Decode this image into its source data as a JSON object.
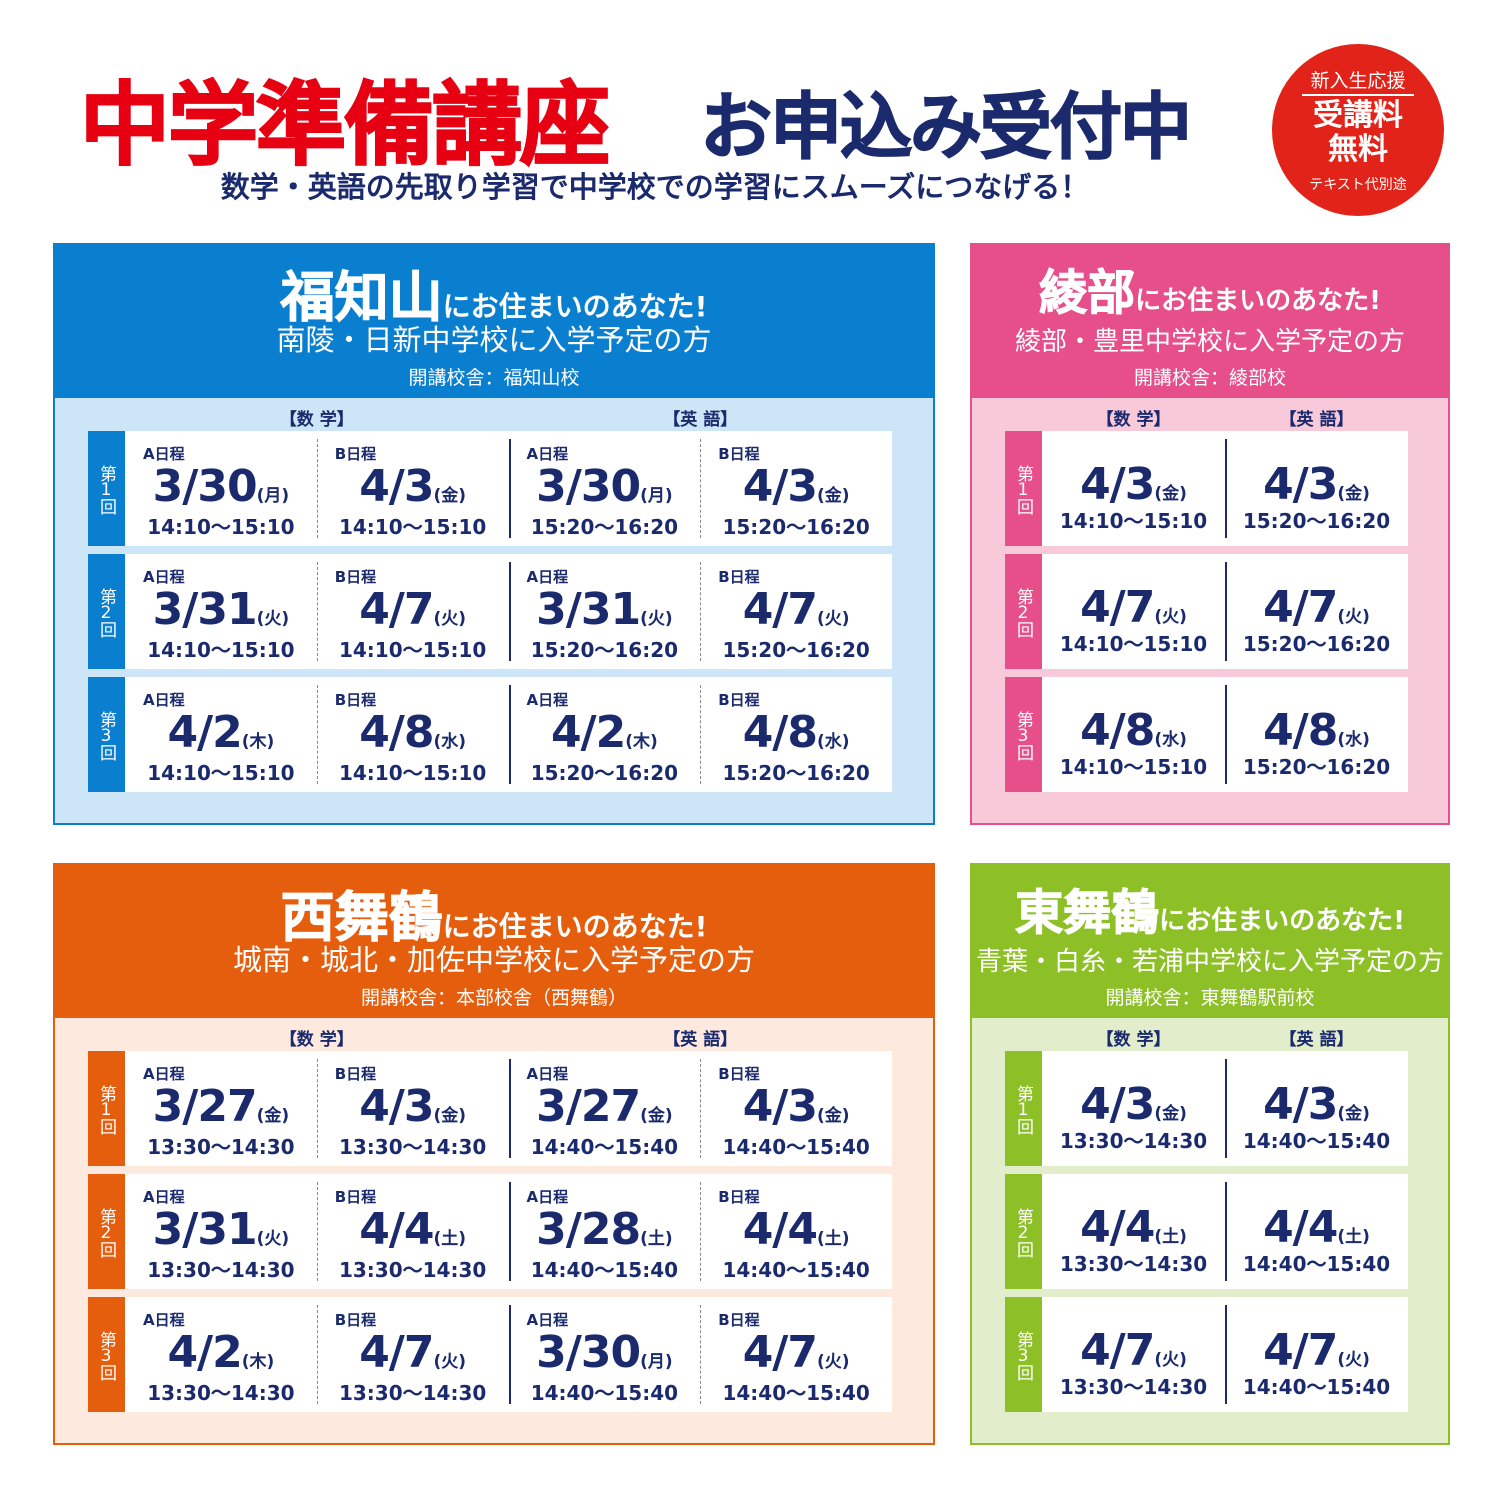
{
  "header": {
    "title": "中学準備講座",
    "title2": "お申込み受付中",
    "subtitle": "数学・英語の先取り学習で中学校での学習にスムーズにつなげる！",
    "badge": {
      "top": "新入生応援",
      "main1": "受講料",
      "main2": "無料",
      "note": "テキスト代別途"
    }
  },
  "panels": [
    {
      "area": "福知山",
      "tagline": "にお住まいのあなた!",
      "target": "南陵・日新中学校に入学予定の方",
      "venue": "開講校舎：福知山校",
      "subjects": [
        "【数 学】",
        "【英 語】"
      ],
      "rounds": [
        {
          "label": "第1回",
          "sessions": [
            {
              "course": "A日程",
              "date": "3/30",
              "day": "(月)",
              "time": "14:10〜15:10"
            },
            {
              "course": "B日程",
              "date": "4/3",
              "day": "(金)",
              "time": "14:10〜15:10"
            },
            {
              "course": "A日程",
              "date": "3/30",
              "day": "(月)",
              "time": "15:20〜16:20"
            },
            {
              "course": "B日程",
              "date": "4/3",
              "day": "(金)",
              "time": "15:20〜16:20"
            }
          ]
        },
        {
          "label": "第2回",
          "sessions": [
            {
              "course": "A日程",
              "date": "3/31",
              "day": "(火)",
              "time": "14:10〜15:10"
            },
            {
              "course": "B日程",
              "date": "4/7",
              "day": "(火)",
              "time": "14:10〜15:10"
            },
            {
              "course": "A日程",
              "date": "3/31",
              "day": "(火)",
              "time": "15:20〜16:20"
            },
            {
              "course": "B日程",
              "date": "4/7",
              "day": "(火)",
              "time": "15:20〜16:20"
            }
          ]
        },
        {
          "label": "第3回",
          "sessions": [
            {
              "course": "A日程",
              "date": "4/2",
              "day": "(木)",
              "time": "14:10〜15:10"
            },
            {
              "course": "B日程",
              "date": "4/8",
              "day": "(水)",
              "time": "14:10〜15:10"
            },
            {
              "course": "A日程",
              "date": "4/2",
              "day": "(木)",
              "time": "15:20〜16:20"
            },
            {
              "course": "B日程",
              "date": "4/8",
              "day": "(水)",
              "time": "15:20〜16:20"
            }
          ]
        }
      ]
    },
    {
      "area": "綾部",
      "tagline": "にお住まいのあなた!",
      "target": "綾部・豊里中学校に入学予定の方",
      "venue": "開講校舎：綾部校",
      "subjects": [
        "【数 学】",
        "【英 語】"
      ],
      "rounds": [
        {
          "label": "第1回",
          "sessions": [
            {
              "date": "4/3",
              "day": "(金)",
              "time": "14:10〜15:10"
            },
            {
              "date": "4/3",
              "day": "(金)",
              "time": "15:20〜16:20"
            }
          ]
        },
        {
          "label": "第2回",
          "sessions": [
            {
              "date": "4/7",
              "day": "(火)",
              "time": "14:10〜15:10"
            },
            {
              "date": "4/7",
              "day": "(火)",
              "time": "15:20〜16:20"
            }
          ]
        },
        {
          "label": "第3回",
          "sessions": [
            {
              "date": "4/8",
              "day": "(水)",
              "time": "14:10〜15:10"
            },
            {
              "date": "4/8",
              "day": "(水)",
              "time": "15:20〜16:20"
            }
          ]
        }
      ]
    },
    {
      "area": "西舞鶴",
      "tagline": "にお住まいのあなた!",
      "target": "城南・城北・加佐中学校に入学予定の方",
      "venue": "開講校舎：本部校舎（西舞鶴）",
      "subjects": [
        "【数 学】",
        "【英 語】"
      ],
      "rounds": [
        {
          "label": "第1回",
          "sessions": [
            {
              "course": "A日程",
              "date": "3/27",
              "day": "(金)",
              "time": "13:30〜14:30"
            },
            {
              "course": "B日程",
              "date": "4/3",
              "day": "(金)",
              "time": "13:30〜14:30"
            },
            {
              "course": "A日程",
              "date": "3/27",
              "day": "(金)",
              "time": "14:40〜15:40"
            },
            {
              "course": "B日程",
              "date": "4/3",
              "day": "(金)",
              "time": "14:40〜15:40"
            }
          ]
        },
        {
          "label": "第2回",
          "sessions": [
            {
              "course": "A日程",
              "date": "3/31",
              "day": "(火)",
              "time": "13:30〜14:30"
            },
            {
              "course": "B日程",
              "date": "4/4",
              "day": "(土)",
              "time": "13:30〜14:30"
            },
            {
              "course": "A日程",
              "date": "3/28",
              "day": "(土)",
              "time": "14:40〜15:40"
            },
            {
              "course": "B日程",
              "date": "4/4",
              "day": "(土)",
              "time": "14:40〜15:40"
            }
          ]
        },
        {
          "label": "第3回",
          "sessions": [
            {
              "course": "A日程",
              "date": "4/2",
              "day": "(木)",
              "time": "13:30〜14:30"
            },
            {
              "course": "B日程",
              "date": "4/7",
              "day": "(火)",
              "time": "13:30〜14:30"
            },
            {
              "course": "A日程",
              "date": "3/30",
              "day": "(月)",
              "time": "14:40〜15:40"
            },
            {
              "course": "B日程",
              "date": "4/7",
              "day": "(火)",
              "time": "14:40〜15:40"
            }
          ]
        }
      ]
    },
    {
      "area": "東舞鶴",
      "tagline": "にお住まいのあなた!",
      "target": "青葉・白糸・若浦中学校に入学予定の方",
      "venue": "開講校舎：東舞鶴駅前校",
      "subjects": [
        "【数 学】",
        "【英 語】"
      ],
      "rounds": [
        {
          "label": "第1回",
          "sessions": [
            {
              "date": "4/3",
              "day": "(金)",
              "time": "13:30〜14:30"
            },
            {
              "date": "4/3",
              "day": "(金)",
              "time": "14:40〜15:40"
            }
          ]
        },
        {
          "label": "第2回",
          "sessions": [
            {
              "date": "4/4",
              "day": "(土)",
              "time": "13:30〜14:30"
            },
            {
              "date": "4/4",
              "day": "(土)",
              "time": "14:40〜15:40"
            }
          ]
        },
        {
          "label": "第3回",
          "sessions": [
            {
              "date": "4/7",
              "day": "(火)",
              "time": "13:30〜14:30"
            },
            {
              "date": "4/7",
              "day": "(火)",
              "time": "14:40〜15:40"
            }
          ]
        }
      ]
    }
  ]
}
